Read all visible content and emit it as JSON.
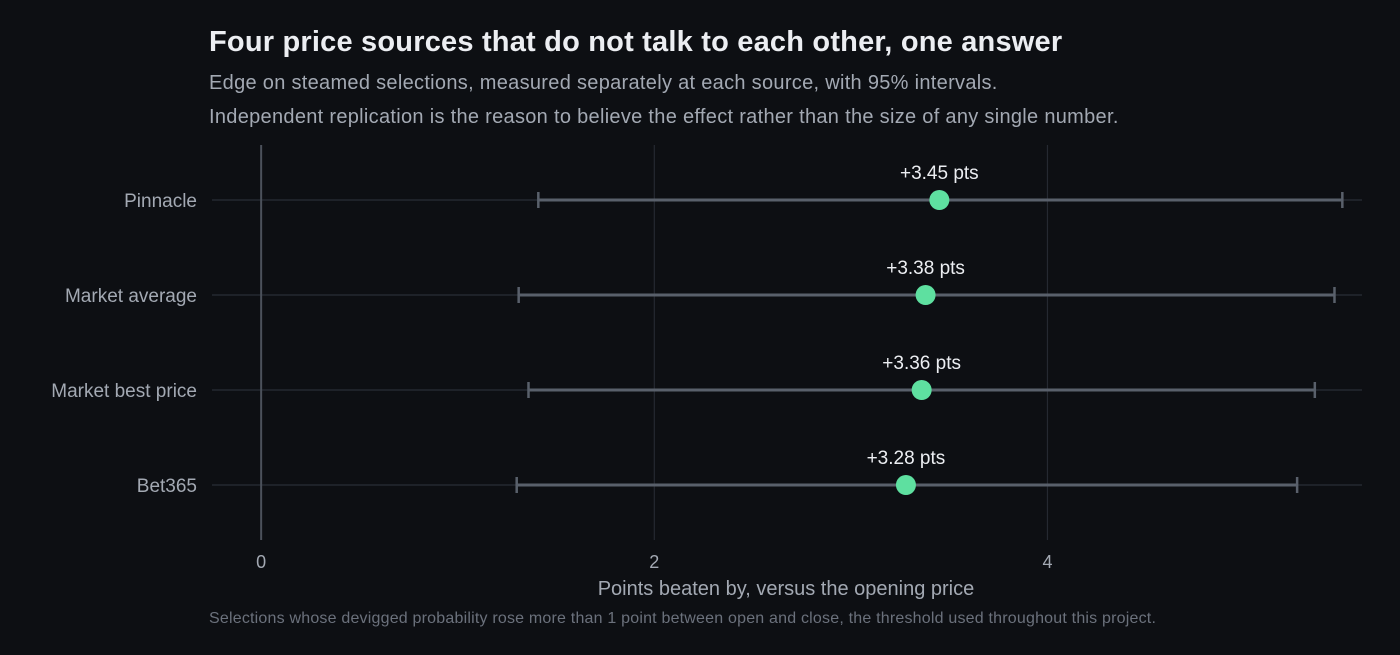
{
  "header": {
    "title": "Four price sources that do not talk to each other, one answer",
    "subtitle_line1": "Edge on steamed selections, measured separately at each source, with 95% intervals.",
    "subtitle_line2": "Independent replication is the reason to believe the effect rather than the size of any single number."
  },
  "footer": {
    "caption": "Selections whose devigged probability rose more than 1 point between open and close, the threshold used throughout this project."
  },
  "chart_data": {
    "type": "scatter",
    "subtype": "dot-and-interval",
    "title": "Four price sources that do not talk to each other, one answer",
    "xlabel": "Points beaten by, versus the opening price",
    "ylabel": "",
    "xlim": [
      -0.25,
      5.6
    ],
    "xticks": [
      0,
      2,
      4
    ],
    "categories": [
      "Pinnacle",
      "Market average",
      "Market best price",
      "Bet365"
    ],
    "values": [
      3.45,
      3.38,
      3.36,
      3.28
    ],
    "ci_low": [
      1.41,
      1.31,
      1.36,
      1.3
    ],
    "ci_high": [
      5.5,
      5.46,
      5.36,
      5.27
    ],
    "data_labels": [
      "+3.45 pts",
      "+3.38 pts",
      "+3.36 pts",
      "+3.28 pts"
    ],
    "grid": true,
    "legend": "none",
    "colors": {
      "background": "#0d0f13",
      "point": "#5ee0a0",
      "interval": "#59606b",
      "grid": "#252931",
      "zero_line": "#4b515b",
      "tick_label": "#a3a9b3",
      "data_label": "#eceef2"
    }
  }
}
